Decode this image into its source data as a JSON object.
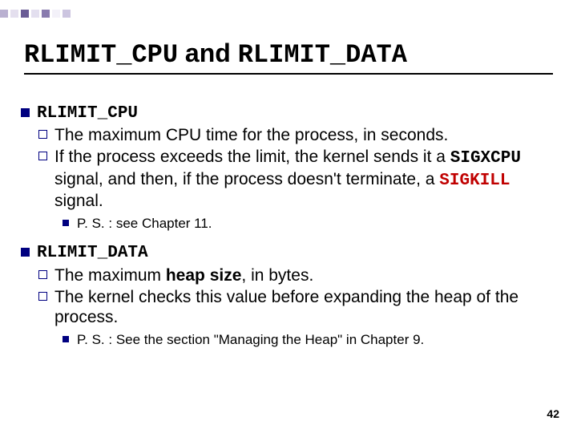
{
  "decor": {
    "squares": [
      {
        "bg": "#8a7bb0",
        "op": 0.6
      },
      {
        "bg": "#c9c0de",
        "op": 0.5
      },
      {
        "bg": "#5a4a8a",
        "op": 0.9
      },
      {
        "bg": "#b8aed6",
        "op": 0.4
      },
      {
        "bg": "#6b5a9a",
        "op": 0.8
      },
      {
        "bg": "#d6cfea",
        "op": 0.3
      },
      {
        "bg": "#9a8cc2",
        "op": 0.5
      }
    ]
  },
  "title": {
    "part1": "RLIMIT_CPU",
    "mid": " and ",
    "part2": "RLIMIT_DATA"
  },
  "section1": {
    "head": "RLIMIT_CPU",
    "item1": {
      "pre": "The maximum CPU time for the process, in seconds."
    },
    "item2": {
      "t1": "If the process exceeds the limit, the kernel sends it a ",
      "sig1": "SIGXCPU",
      "t2": " signal, and then, if the process doesn't terminate, a ",
      "sig2": "SIGKILL",
      "t3": " signal."
    },
    "ps": "P. S. : see Chapter 11."
  },
  "section2": {
    "head": "RLIMIT_DATA",
    "item1": {
      "t1": "The maximum ",
      "bold": "heap size",
      "t2": ", in bytes."
    },
    "item2": "The kernel checks this value before expanding the heap of the process.",
    "ps": "P. S. : See the section \"Managing the Heap\" in Chapter 9."
  },
  "pageNumber": "42"
}
